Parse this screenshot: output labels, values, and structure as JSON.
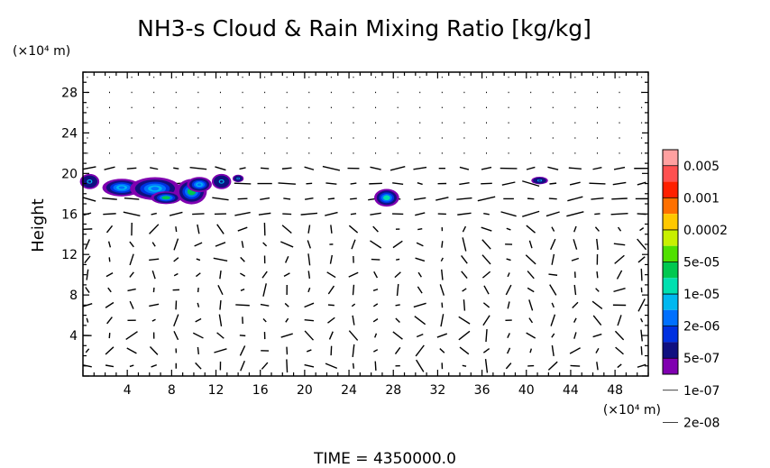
{
  "chart_data": {
    "type": "heatmap",
    "title": "NH3-s Cloud & Rain Mixing Ratio [kg/kg]",
    "ylabel": "Height",
    "x_unit": "(×10⁴ m)",
    "y_unit": "(×10⁴ m)",
    "xlim": [
      0,
      51
    ],
    "ylim": [
      0,
      30
    ],
    "x_ticks": [
      4,
      8,
      12,
      16,
      20,
      24,
      28,
      32,
      36,
      40,
      44,
      48
    ],
    "y_ticks": [
      4,
      8,
      12,
      16,
      20,
      24,
      28
    ],
    "colorbar": {
      "labels": [
        "0.005",
        "0.001",
        "0.0002",
        "5e-05",
        "1e-05",
        "2e-06",
        "5e-07",
        "1e-07",
        "2e-08"
      ],
      "colors": [
        "#ffa0a0",
        "#ff5050",
        "#ff2000",
        "#ff7000",
        "#ffc800",
        "#c8f000",
        "#50e000",
        "#00c850",
        "#00e0b0",
        "#00b8f0",
        "#0070ff",
        "#0030e0",
        "#101080",
        "#8000b0"
      ]
    },
    "clouds": [
      {
        "x": 0.6,
        "y": 19.2,
        "rx": 0.7,
        "ry": 0.6,
        "level": "1e-07"
      },
      {
        "x": 3.5,
        "y": 18.6,
        "rx": 1.4,
        "ry": 0.7,
        "level": "5e-07"
      },
      {
        "x": 6.5,
        "y": 18.5,
        "rx": 1.8,
        "ry": 0.9,
        "level": "5e-07"
      },
      {
        "x": 7.5,
        "y": 17.6,
        "rx": 1.1,
        "ry": 0.5,
        "level": "1e-05"
      },
      {
        "x": 9.8,
        "y": 18.2,
        "rx": 1.1,
        "ry": 1.0,
        "level": "1e-05"
      },
      {
        "x": 10.5,
        "y": 18.9,
        "rx": 0.9,
        "ry": 0.6,
        "level": "5e-07"
      },
      {
        "x": 12.5,
        "y": 19.2,
        "rx": 0.7,
        "ry": 0.6,
        "level": "1e-07"
      },
      {
        "x": 14.0,
        "y": 19.5,
        "rx": 0.4,
        "ry": 0.3,
        "level": "1e-07"
      },
      {
        "x": 27.4,
        "y": 17.6,
        "rx": 0.9,
        "ry": 0.7,
        "level": "5e-06"
      },
      {
        "x": 41.2,
        "y": 19.3,
        "rx": 0.6,
        "ry": 0.3,
        "level": "1e-07"
      }
    ],
    "time_label": "TIME =  4350000.0"
  }
}
